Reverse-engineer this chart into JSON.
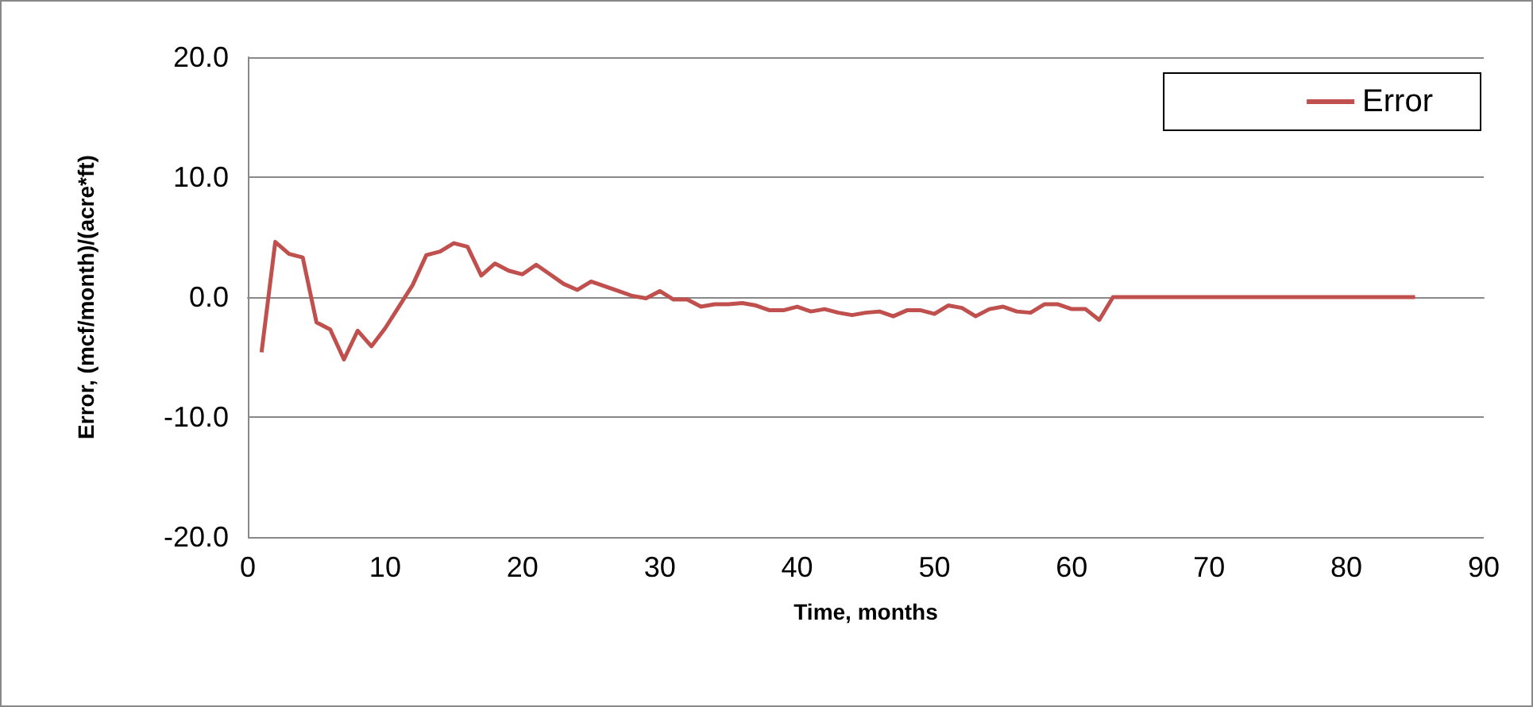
{
  "chart_data": {
    "type": "line",
    "xlabel": "Time, months",
    "ylabel": "Error, (mcf/month)/(acre*ft)",
    "x": [
      1,
      2,
      3,
      4,
      5,
      6,
      7,
      8,
      9,
      10,
      11,
      12,
      13,
      14,
      15,
      16,
      17,
      18,
      19,
      20,
      21,
      22,
      23,
      24,
      25,
      26,
      27,
      28,
      29,
      30,
      31,
      32,
      33,
      34,
      35,
      36,
      37,
      38,
      39,
      40,
      41,
      42,
      43,
      44,
      45,
      46,
      47,
      48,
      49,
      50,
      51,
      52,
      53,
      54,
      55,
      56,
      57,
      58,
      59,
      60,
      61,
      62,
      63,
      64,
      65,
      66,
      67,
      68,
      69,
      70,
      71,
      72,
      73,
      74,
      75,
      76,
      77,
      78,
      79,
      80,
      81,
      82,
      83,
      84,
      85
    ],
    "series": [
      {
        "name": "Error",
        "color": "#c0504d",
        "values": [
          -4.6,
          4.6,
          3.6,
          3.3,
          -2.1,
          -2.7,
          -5.2,
          -2.8,
          -4.1,
          -2.6,
          -0.8,
          1.0,
          3.5,
          3.8,
          4.5,
          4.2,
          1.8,
          2.8,
          2.2,
          1.9,
          2.7,
          1.9,
          1.1,
          0.6,
          1.3,
          0.9,
          0.5,
          0.1,
          -0.1,
          0.5,
          -0.2,
          -0.2,
          -0.8,
          -0.6,
          -0.6,
          -0.5,
          -0.7,
          -1.1,
          -1.1,
          -0.8,
          -1.2,
          -1.0,
          -1.3,
          -1.5,
          -1.3,
          -1.2,
          -1.6,
          -1.1,
          -1.1,
          -1.4,
          -0.7,
          -0.9,
          -1.6,
          -1.0,
          -0.8,
          -1.2,
          -1.3,
          -0.6,
          -0.6,
          -1.0,
          -1.0,
          -1.9,
          0,
          0,
          0,
          0,
          0,
          0,
          0,
          0,
          0,
          0,
          0,
          0,
          0,
          0,
          0,
          0,
          0,
          0,
          0,
          0,
          0,
          0,
          0
        ]
      }
    ],
    "xlim": [
      0,
      90
    ],
    "xticks": [
      0,
      10,
      20,
      30,
      40,
      50,
      60,
      70,
      80,
      90
    ],
    "ylim": [
      -20,
      20
    ],
    "yticks": [
      {
        "value": -20,
        "label": "-20.0"
      },
      {
        "value": -10,
        "label": "-10.0"
      },
      {
        "value": 0,
        "label": "0.0"
      },
      {
        "value": 10,
        "label": "10.0"
      },
      {
        "value": 20,
        "label": "20.0"
      }
    ],
    "grid": "y",
    "legend": "top right",
    "marker": "none",
    "line_style": "solid"
  }
}
